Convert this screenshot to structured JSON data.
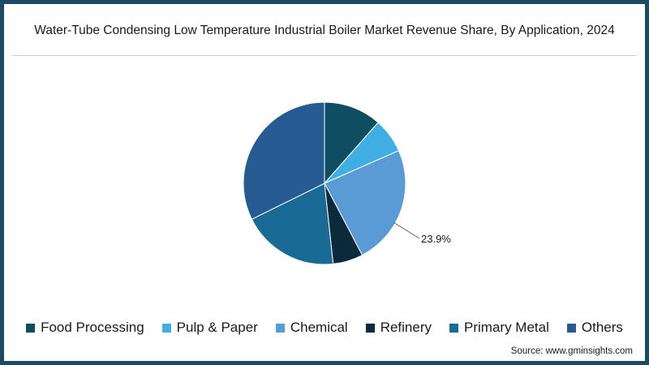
{
  "title": "Water-Tube Condensing Low Temperature Industrial Boiler Market Revenue Share, By Application, 2024",
  "source": "Source: www.gminsights.com",
  "chart_data": {
    "type": "pie",
    "title": "Water-Tube Condensing Low Temperature Industrial Boiler Market Revenue Share, By Application, 2024",
    "categories": [
      "Food Processing",
      "Pulp & Paper",
      "Chemical",
      "Refinery",
      "Primary Metal",
      "Others"
    ],
    "values": [
      11.5,
      6.9,
      23.9,
      6.0,
      19.4,
      32.3
    ],
    "colors": [
      "#0f4d62",
      "#41aee3",
      "#5a9bd5",
      "#0b2a3c",
      "#1a6a96",
      "#265b92"
    ],
    "data_labels": [
      "",
      "",
      "23.9%",
      "",
      "",
      ""
    ],
    "start": "12 o'clock",
    "direction": "clockwise",
    "legend_position": "bottom"
  }
}
